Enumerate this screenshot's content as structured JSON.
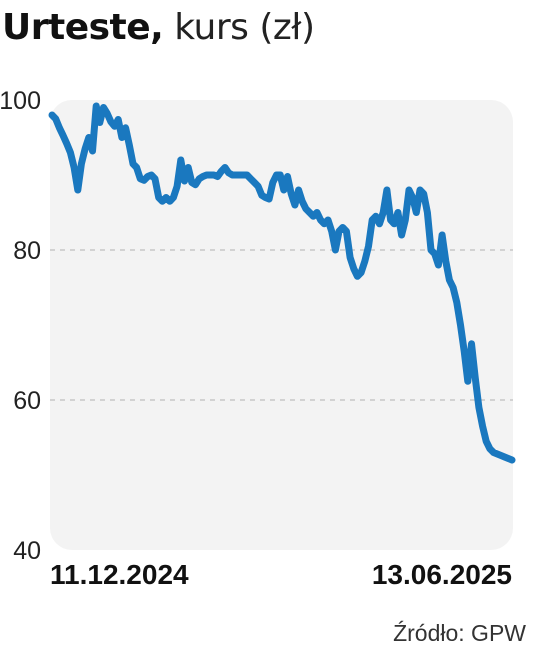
{
  "title": {
    "name": "Urteste,",
    "unit": "kurs (zł)"
  },
  "source": "Źródło: GPW",
  "colors": {
    "line": "#1a78bf",
    "plot_bg": "#f3f3f3",
    "grid": "#c8c8c8",
    "text": "#222222"
  },
  "chart_data": {
    "type": "line",
    "title": "Urteste, kurs (zł)",
    "xlabel": "",
    "ylabel": "",
    "ylim": [
      40,
      100
    ],
    "yticks": [
      40,
      60,
      80,
      100
    ],
    "ytick_labels": [
      "40",
      "60",
      "80",
      "100"
    ],
    "grid": "horizontal dashed at 60 and 80",
    "xtick_labels": [
      {
        "index": 0,
        "label": "11.12.2024"
      },
      {
        "index": 125,
        "label": "13.06.2025"
      }
    ],
    "series": [
      {
        "values": [
          98.0,
          97.5,
          96.3,
          95.3,
          94.2,
          93.0,
          91.0,
          88.0,
          91.5,
          93.5,
          95.0,
          93.2,
          99.2,
          97.0,
          99.0,
          98.2,
          97.1,
          96.5,
          97.4,
          95.0,
          96.3,
          94.0,
          91.5,
          91.0,
          89.5,
          89.3,
          89.8,
          90.0,
          89.5,
          87.0,
          86.5,
          87.0,
          86.5,
          87.0,
          88.5,
          92.0,
          89.2,
          91.0,
          89.0,
          88.7,
          89.5,
          89.8,
          90.0,
          90.0,
          90.0,
          89.8,
          90.5,
          91.0,
          90.3,
          90.0,
          90.0,
          90.0,
          90.0,
          90.0,
          89.5,
          89.0,
          88.5,
          87.3,
          87.0,
          86.8,
          89.0,
          90.0,
          90.0,
          88.0,
          89.8,
          87.5,
          86.0,
          88.0,
          86.5,
          85.5,
          85.0,
          84.5,
          85.0,
          84.0,
          83.5,
          84.0,
          82.5,
          80.0,
          82.5,
          83.0,
          82.5,
          79.0,
          77.5,
          76.5,
          77.0,
          78.5,
          80.5,
          84.0,
          84.5,
          83.5,
          85.0,
          88.0,
          84.0,
          83.5,
          85.0,
          82.0,
          84.0,
          88.0,
          87.0,
          85.0,
          88.0,
          87.5,
          85.0,
          80.0,
          79.5,
          78.0,
          82.0,
          78.5,
          76.0,
          75.0,
          73.0,
          70.0,
          66.5,
          62.5,
          67.5,
          63.0,
          59.0,
          56.5,
          54.5,
          53.5,
          53.0,
          52.8,
          52.6,
          52.4,
          52.2,
          52.0
        ]
      }
    ]
  }
}
